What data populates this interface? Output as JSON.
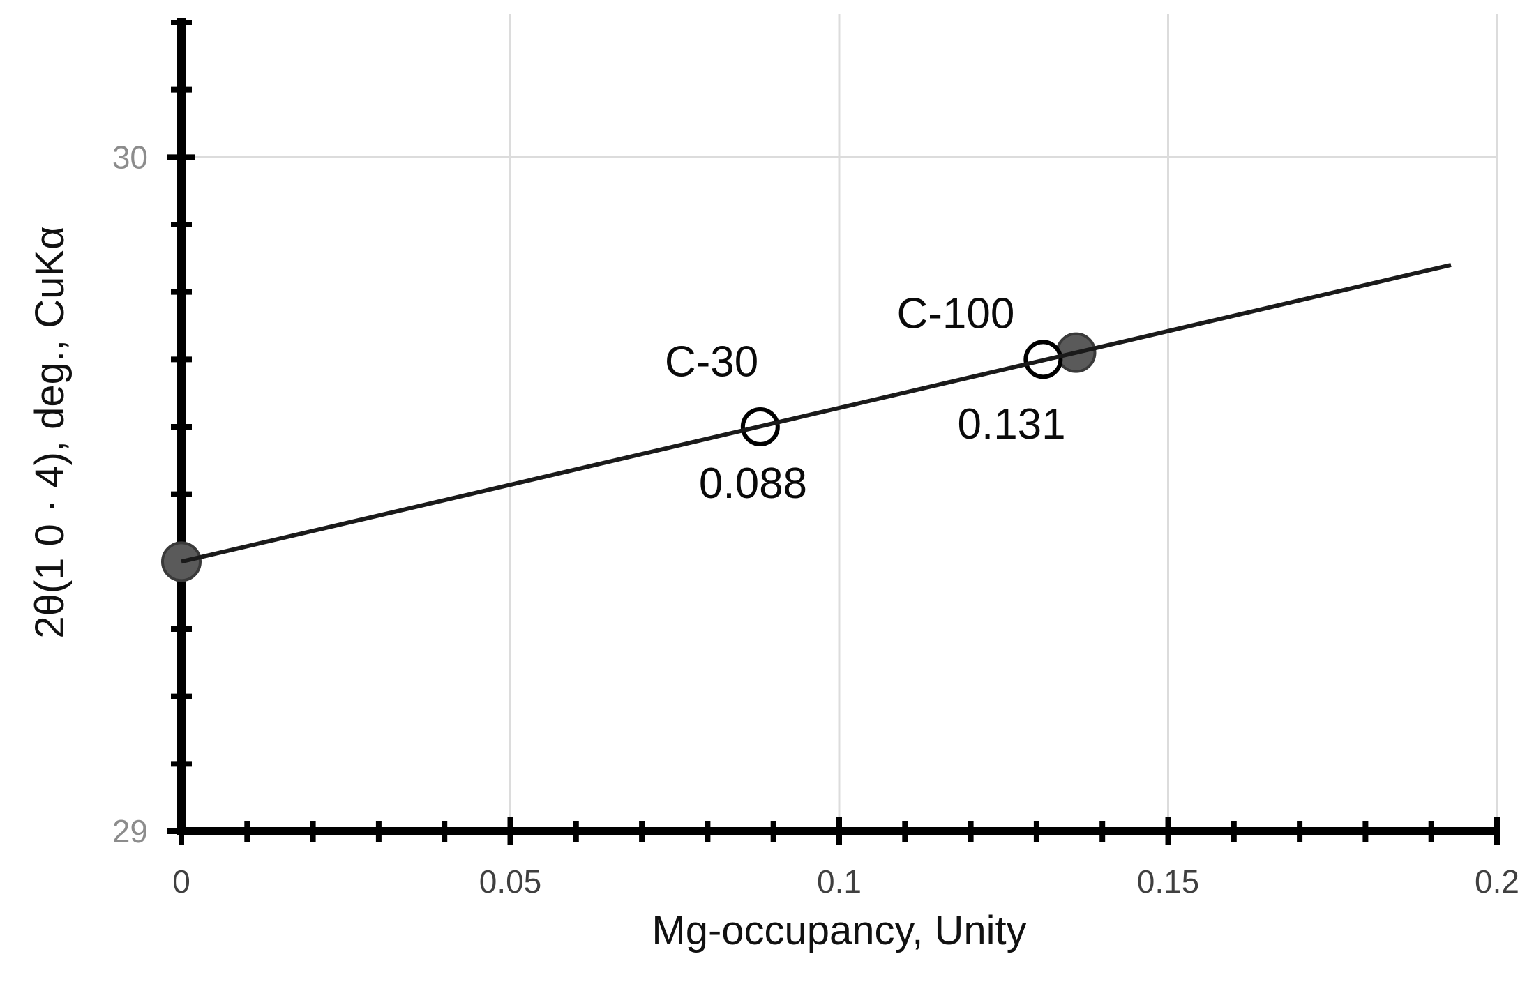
{
  "figure": {
    "background": "#ffffff"
  },
  "chart_data": {
    "type": "scatter",
    "title": "",
    "xlabel": "Mg-occupancy, Unity",
    "ylabel": "2θ(1 0 · 4), deg., CuKα",
    "xlim": [
      0,
      0.2
    ],
    "ylim": [
      29,
      30.2
    ],
    "x_major_ticks": [
      0,
      0.05,
      0.1,
      0.15,
      0.2
    ],
    "x_tick_labels": [
      "0",
      "0.05",
      "0.1",
      "0.15",
      "0.2"
    ],
    "x_minor_step": 0.01,
    "y_major_ticks": [
      29,
      30
    ],
    "y_tick_labels": [
      "29",
      "30"
    ],
    "y_minor_step": 0.1,
    "grid": {
      "vertical_at": [
        0.05,
        0.1,
        0.15,
        0.2
      ],
      "horizontal_at": [
        30
      ]
    },
    "series": [
      {
        "name": "filled-gray-points",
        "marker": "filled-circle",
        "points": [
          {
            "x": 0,
            "y": 29.4
          },
          {
            "x": 0.136,
            "y": 29.71
          }
        ]
      },
      {
        "name": "open-circle-points",
        "marker": "open-circle",
        "points": [
          {
            "x": 0.088,
            "y": 29.6,
            "label": "C-30",
            "value_label": "0.088"
          },
          {
            "x": 0.131,
            "y": 29.7,
            "label": "C-100",
            "value_label": "0.131"
          }
        ]
      }
    ],
    "trendline": {
      "x1": 0,
      "y1": 29.4,
      "x2": 0.193,
      "y2": 29.84
    },
    "annotations": [
      {
        "text": "C-30",
        "x": 0.0806,
        "y": 29.698
      },
      {
        "text": "0.088",
        "x": 0.0869,
        "y": 29.517
      },
      {
        "text": "C-100",
        "x": 0.1177,
        "y": 29.769
      },
      {
        "text": "0.131",
        "x": 0.1262,
        "y": 29.605
      }
    ],
    "legend": null,
    "colors": {
      "axis": "#000000",
      "grid": "#dcdcdc",
      "trendline": "#1a1a1a",
      "marker_filled_fill": "#5a5a5a",
      "marker_filled_stroke": "#3a3a3a",
      "marker_open_fill": "#ffffff",
      "marker_open_stroke": "#000000",
      "x_tick_label": "#404040",
      "y_tick_label": "#8c8c8c",
      "annotation_text": "#0a0a0a",
      "axis_title_text": "#111111"
    }
  }
}
